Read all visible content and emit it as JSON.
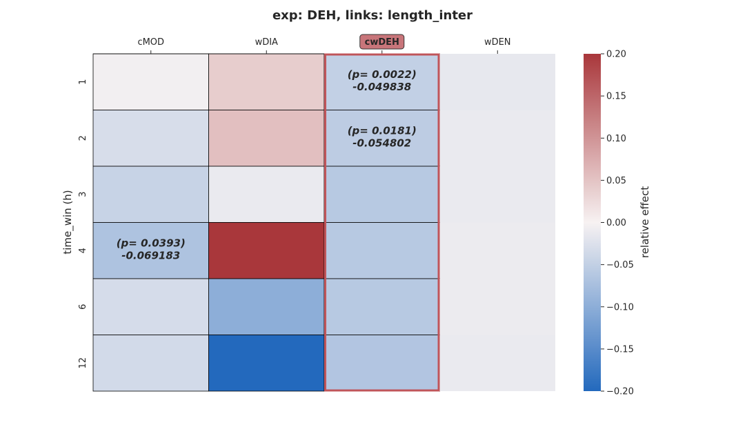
{
  "chart_data": {
    "type": "heatmap",
    "title": "exp: DEH, links: length_inter",
    "x_categories": [
      "cMOD",
      "wDIA",
      "cwDEH",
      "wDEN"
    ],
    "y_categories": [
      "1",
      "2",
      "3",
      "4",
      "6",
      "12"
    ],
    "ylabel": "time_win (h)",
    "highlighted_column": "cwDEH",
    "values": [
      [
        -0.005,
        0.04,
        -0.049838,
        -0.015
      ],
      [
        -0.03,
        0.055,
        -0.054802,
        -0.012
      ],
      [
        -0.045,
        -0.012,
        -0.06,
        -0.012
      ],
      [
        -0.069183,
        0.2,
        -0.06,
        -0.01
      ],
      [
        -0.032,
        -0.1,
        -0.06,
        -0.01
      ],
      [
        -0.035,
        -0.2,
        -0.065,
        -0.012
      ]
    ],
    "annotations": [
      {
        "row": 0,
        "col": 2,
        "p_text": "(p= 0.0022)",
        "value_text": "-0.049838"
      },
      {
        "row": 1,
        "col": 2,
        "p_text": "(p= 0.0181)",
        "value_text": "-0.054802"
      },
      {
        "row": 3,
        "col": 0,
        "p_text": "(p= 0.0393)",
        "value_text": "-0.069183"
      }
    ],
    "colorbar": {
      "label": "relative effect",
      "range": [
        -0.2,
        0.2
      ],
      "ticks": [
        0.2,
        0.15,
        0.1,
        0.05,
        0.0,
        -0.05,
        -0.1,
        -0.15,
        -0.2
      ],
      "tick_labels": [
        "0.20",
        "0.15",
        "0.10",
        "0.05",
        "0.00",
        "−0.05",
        "−0.10",
        "−0.15",
        "−0.20"
      ],
      "colors": {
        "low": "#2369bd",
        "mid": "#f7f2f2",
        "high": "#a9373b"
      }
    },
    "highlight_color": "#c0555a",
    "highlight_label_fill": "#c8757a"
  }
}
